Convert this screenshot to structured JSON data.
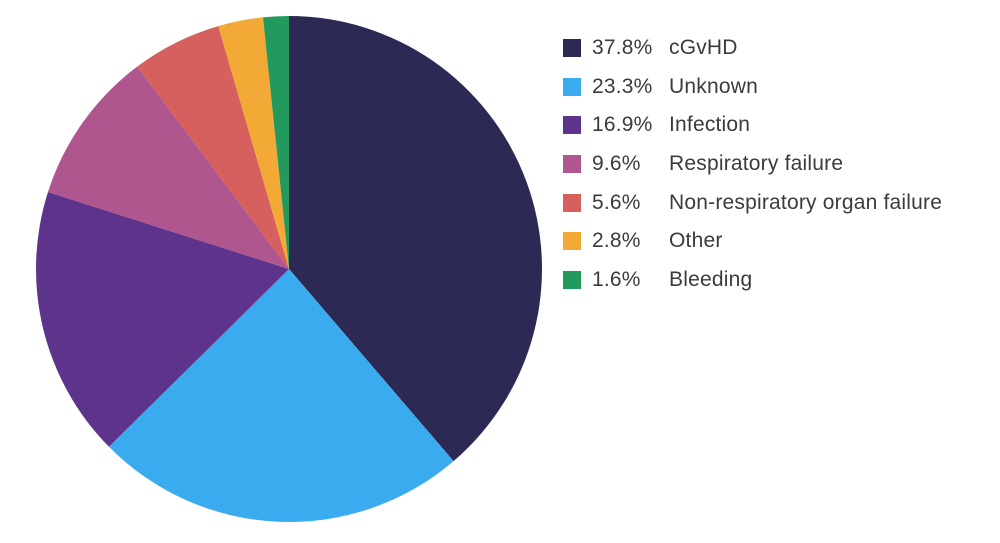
{
  "chart_data": {
    "type": "pie",
    "title": "",
    "legend_position": "right",
    "slices": [
      {
        "label": "cGvHD",
        "value": 37.8,
        "display": "37.8%",
        "color": "#2c2a54"
      },
      {
        "label": "Unknown",
        "value": 23.3,
        "display": "23.3%",
        "color": "#3aabef"
      },
      {
        "label": "Infection",
        "value": 16.9,
        "display": "16.9%",
        "color": "#5e338c"
      },
      {
        "label": "Respiratory failure",
        "value": 9.6,
        "display": "9.6%",
        "color": "#b0568f"
      },
      {
        "label": "Non-respiratory organ failure",
        "value": 5.6,
        "display": "5.6%",
        "color": "#d6605e"
      },
      {
        "label": "Other",
        "value": 2.8,
        "display": "2.8%",
        "color": "#f2a935"
      },
      {
        "label": "Bleeding",
        "value": 1.6,
        "display": "1.6%",
        "color": "#229a5d"
      }
    ]
  }
}
